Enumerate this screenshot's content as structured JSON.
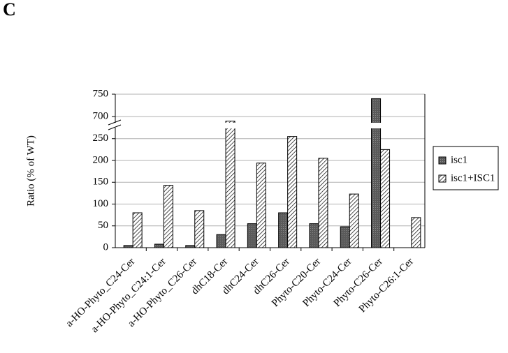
{
  "panel_label": "C",
  "chart_data": {
    "type": "bar",
    "y_label": "Ratio (% of WT)",
    "categories": [
      "a-HO-Phyto_C24-Cer",
      "a-HO-Phyto_C24:1-Cer",
      "a-HO-Phyto_C26-Cer",
      "dhC18-Cer",
      "dhC24-Cer",
      "dhC26-Cer",
      "Phyto-C20-Cer",
      "Phyto-C24-Cer",
      "Phyto-C26-Cer",
      "Phyto-C26:1-Cer"
    ],
    "series": [
      {
        "name": "isc1",
        "color": "#5a5a5a",
        "hatch": false,
        "values": [
          5,
          8,
          5,
          30,
          55,
          80,
          55,
          48,
          740,
          0
        ]
      },
      {
        "name": "isc1+ISC1",
        "color": "#ffffff",
        "hatch": true,
        "values": [
          80,
          143,
          85,
          690,
          194,
          255,
          205,
          123,
          225,
          69
        ]
      }
    ],
    "ylim": [
      0,
      750
    ],
    "ybreak": [
      280,
      680
    ],
    "yticks": [
      0,
      50,
      100,
      150,
      200,
      250,
      700,
      750
    ],
    "grid": true,
    "legend": "right"
  }
}
